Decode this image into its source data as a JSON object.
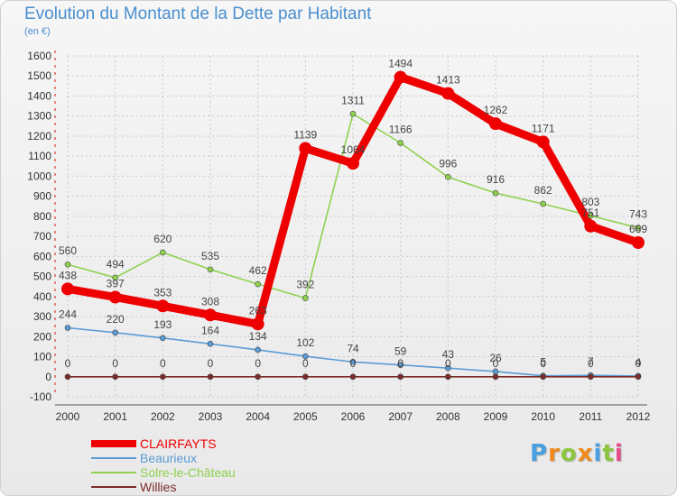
{
  "title": "Evolution du Montant de la Dette par Habitant",
  "subtitle": "(en €)",
  "chart_data": {
    "type": "line",
    "title": "Evolution du Montant de la Dette par Habitant",
    "ylabel": "(en €)",
    "xlabel": "",
    "x": [
      "2000",
      "2001",
      "2002",
      "2003",
      "2004",
      "2005",
      "2006",
      "2007",
      "2008",
      "2009",
      "2010",
      "2011",
      "2012"
    ],
    "ylim": [
      -100,
      1600
    ],
    "yticks": [
      -100,
      0,
      100,
      200,
      300,
      400,
      500,
      600,
      700,
      800,
      900,
      1000,
      1100,
      1200,
      1300,
      1400,
      1500,
      1600
    ],
    "grid": true,
    "legend_position": "bottom-left",
    "series": [
      {
        "name": "CLAIRFAYTS",
        "color": "#ee0000",
        "values": [
          438,
          397,
          353,
          308,
          263,
          1139,
          1064,
          1494,
          1413,
          1262,
          1171,
          751,
          669
        ],
        "labels": [
          "438",
          "397",
          "353",
          "308",
          "263",
          "1139",
          "1064",
          "1494",
          "1413",
          "1262",
          "1171",
          "751",
          "669"
        ]
      },
      {
        "name": "Beaurieux",
        "color": "#5b9bd5",
        "values": [
          244,
          220,
          193,
          164,
          134,
          102,
          74,
          59,
          43,
          26,
          5,
          7,
          4
        ],
        "labels": [
          "244",
          "220",
          "193",
          "164",
          "134",
          "102",
          "74",
          "59",
          "43",
          "26",
          "5",
          "7",
          "4"
        ]
      },
      {
        "name": "Solre-le-Château",
        "color": "#8fd14f",
        "values": [
          560,
          494,
          620,
          535,
          462,
          392,
          1311,
          1166,
          996,
          916,
          862,
          803,
          743
        ],
        "labels": [
          "560",
          "494",
          "620",
          "535",
          "462",
          "392",
          "1311",
          "1166",
          "996",
          "916",
          "862",
          "803",
          "743"
        ]
      },
      {
        "name": "Willies",
        "color": "#7b2b2b",
        "values": [
          0,
          0,
          0,
          0,
          0,
          0,
          0,
          0,
          0,
          0,
          0,
          0,
          0
        ],
        "labels": [
          "0",
          "0",
          "0",
          "0",
          "0",
          "0",
          "0",
          "0",
          "0",
          "0",
          "0",
          "0",
          "0"
        ]
      }
    ]
  },
  "legend": [
    {
      "label": "CLAIRFAYTS",
      "color": "#ee0000"
    },
    {
      "label": "Beaurieux",
      "color": "#5b9bd5"
    },
    {
      "label": "Solre-le-Château",
      "color": "#8fd14f"
    },
    {
      "label": "Willies",
      "color": "#7b2b2b"
    }
  ],
  "logo": {
    "text": "Proxiti"
  }
}
